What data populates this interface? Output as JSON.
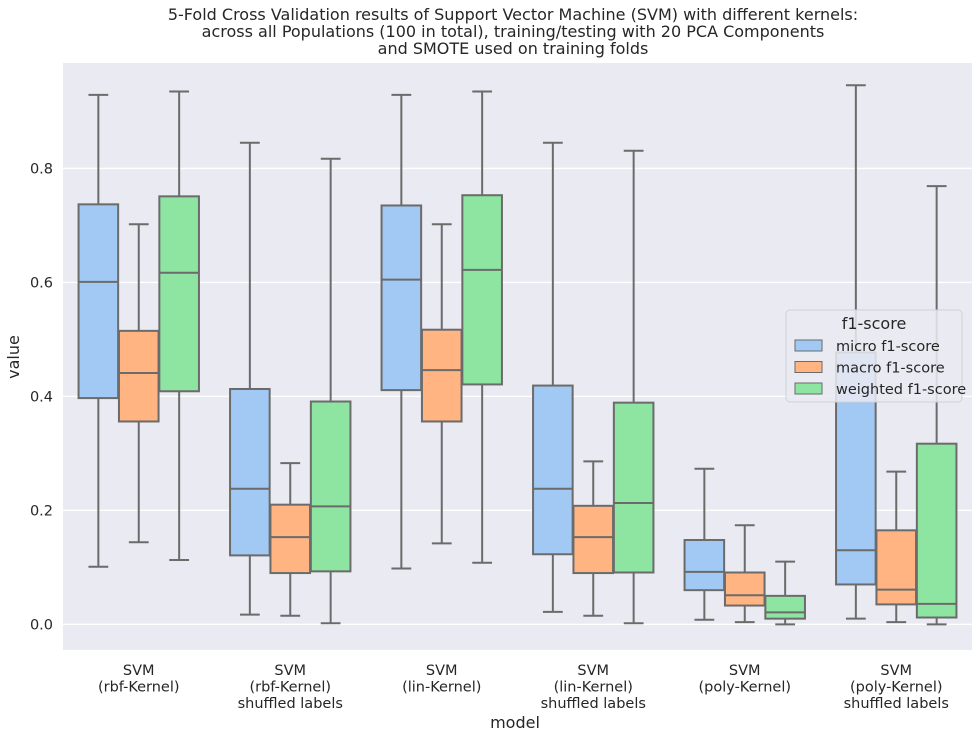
{
  "chart_data": {
    "type": "box",
    "title": [
      "5-Fold Cross Validation results of Support Vector Machine (SVM) with different kernels:",
      "across all Populations (100 in total), training/testing with 20 PCA Components",
      "and SMOTE used on training folds"
    ],
    "xlabel": "model",
    "ylabel": "value",
    "ylim": [
      -0.045,
      0.985
    ],
    "yticks": [
      "0.0",
      "0.2",
      "0.4",
      "0.6",
      "0.8"
    ],
    "ytick_values": [
      0.0,
      0.2,
      0.4,
      0.6,
      0.8
    ],
    "grid": true,
    "legend": {
      "title": "f1-score",
      "placement": "center-right",
      "entries": [
        "micro f1-score",
        "macro f1-score",
        "weighted f1-score"
      ]
    },
    "categories": [
      [
        "SVM",
        "(rbf-Kernel)"
      ],
      [
        "SVM",
        "(rbf-Kernel)",
        "shuffled labels"
      ],
      [
        "SVM",
        "(lin-Kernel)"
      ],
      [
        "SVM",
        "(lin-Kernel)",
        "shuffled labels"
      ],
      [
        "SVM",
        "(poly-Kernel)"
      ],
      [
        "SVM",
        "(poly-Kernel)",
        "shuffled labels"
      ]
    ],
    "series": [
      {
        "name": "micro f1-score",
        "color": "#a1c9f4",
        "boxes": [
          {
            "min": 0.101,
            "q1": 0.397,
            "median": 0.601,
            "q3": 0.737,
            "max": 0.929
          },
          {
            "min": 0.017,
            "q1": 0.121,
            "median": 0.238,
            "q3": 0.413,
            "max": 0.845
          },
          {
            "min": 0.098,
            "q1": 0.411,
            "median": 0.605,
            "q3": 0.735,
            "max": 0.929
          },
          {
            "min": 0.022,
            "q1": 0.123,
            "median": 0.238,
            "q3": 0.419,
            "max": 0.845
          },
          {
            "min": 0.008,
            "q1": 0.06,
            "median": 0.092,
            "q3": 0.148,
            "max": 0.273
          },
          {
            "min": 0.01,
            "q1": 0.07,
            "median": 0.13,
            "q3": 0.477,
            "max": 0.946
          }
        ]
      },
      {
        "name": "macro f1-score",
        "color": "#ffb482",
        "boxes": [
          {
            "min": 0.144,
            "q1": 0.356,
            "median": 0.441,
            "q3": 0.515,
            "max": 0.702
          },
          {
            "min": 0.015,
            "q1": 0.09,
            "median": 0.153,
            "q3": 0.21,
            "max": 0.283
          },
          {
            "min": 0.142,
            "q1": 0.356,
            "median": 0.446,
            "q3": 0.517,
            "max": 0.702
          },
          {
            "min": 0.015,
            "q1": 0.09,
            "median": 0.153,
            "q3": 0.208,
            "max": 0.286
          },
          {
            "min": 0.004,
            "q1": 0.033,
            "median": 0.051,
            "q3": 0.091,
            "max": 0.174
          },
          {
            "min": 0.004,
            "q1": 0.035,
            "median": 0.061,
            "q3": 0.165,
            "max": 0.268
          }
        ]
      },
      {
        "name": "weighted f1-score",
        "color": "#8de5a1",
        "boxes": [
          {
            "min": 0.113,
            "q1": 0.409,
            "median": 0.617,
            "q3": 0.751,
            "max": 0.935
          },
          {
            "min": 0.002,
            "q1": 0.093,
            "median": 0.207,
            "q3": 0.391,
            "max": 0.817
          },
          {
            "min": 0.108,
            "q1": 0.421,
            "median": 0.622,
            "q3": 0.753,
            "max": 0.935
          },
          {
            "min": 0.002,
            "q1": 0.091,
            "median": 0.213,
            "q3": 0.389,
            "max": 0.831
          },
          {
            "min": 0.0,
            "q1": 0.01,
            "median": 0.021,
            "q3": 0.05,
            "max": 0.11
          },
          {
            "min": 0.0,
            "q1": 0.012,
            "median": 0.036,
            "q3": 0.317,
            "max": 0.769
          }
        ]
      }
    ]
  }
}
